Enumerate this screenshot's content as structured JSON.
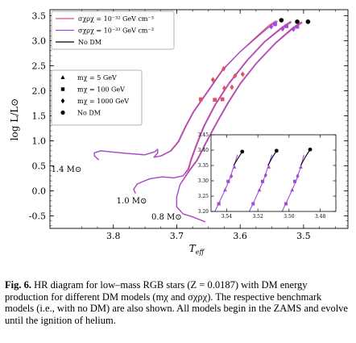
{
  "chart_data": {
    "type": "line",
    "xlabel": "T_eff",
    "ylabel": "log L/L⊙",
    "x_reversed": true,
    "xlim": [
      3.9,
      3.43
    ],
    "ylim": [
      -0.75,
      3.62
    ],
    "x_ticks": [
      "3.8",
      "3.7",
      "3.6",
      "3.5"
    ],
    "x_tick_values": [
      3.8,
      3.7,
      3.6,
      3.5
    ],
    "y_ticks": [
      "3.5",
      "3.0",
      "2.5",
      "2.0",
      "1.5",
      "1.0",
      "0.5",
      "0.0",
      "-0.5"
    ],
    "y_tick_values": [
      3.5,
      3.0,
      2.5,
      2.0,
      1.5,
      1.0,
      0.5,
      0.0,
      -0.5
    ],
    "colors": {
      "sigma_-32": "#e0535f",
      "sigma_-33": "#a24bd6",
      "no_dm": "#000000"
    },
    "legend_lines": {
      "placement": "top-left",
      "entries": [
        {
          "label": "σχρχ = 10⁻³² GeV cm⁻³",
          "color": "#e0535f"
        },
        {
          "label": "σχρχ = 10⁻³³ GeV cm⁻³",
          "color": "#a24bd6"
        },
        {
          "label": "No DM",
          "color": "#000000"
        }
      ]
    },
    "legend_markers": {
      "placement": "upper-left",
      "entries": [
        {
          "marker": "triangle",
          "label": "mχ = 5 GeV"
        },
        {
          "marker": "square",
          "label": "mχ = 100 GeV"
        },
        {
          "marker": "diamond",
          "label": "mχ = 1000 GeV"
        },
        {
          "marker": "circle",
          "label": "No DM"
        }
      ]
    },
    "mass_labels": [
      {
        "text": "1.4 M⊙",
        "x": 3.898,
        "y": 0.38
      },
      {
        "text": "1.0 M⊙",
        "x": 3.795,
        "y": -0.25
      },
      {
        "text": "0.8 M⊙",
        "x": 3.74,
        "y": -0.57
      }
    ],
    "series": [
      {
        "name": "1.4 M⊙",
        "group": "sigma_-32",
        "x": [
          3.823,
          3.83,
          3.83,
          3.82,
          3.78,
          3.75,
          3.735,
          3.73,
          3.73,
          3.736,
          3.725,
          3.71,
          3.698,
          3.686,
          3.674,
          3.652,
          3.628,
          3.6,
          3.57,
          3.555,
          3.543
        ],
        "y": [
          0.62,
          0.7,
          0.76,
          0.8,
          0.75,
          0.72,
          0.78,
          0.83,
          0.76,
          0.67,
          0.7,
          0.8,
          0.98,
          1.3,
          1.58,
          1.98,
          2.42,
          2.78,
          3.13,
          3.3,
          3.4
        ]
      },
      {
        "name": "1.4 M⊙",
        "group": "sigma_-33",
        "x": [
          3.823,
          3.83,
          3.83,
          3.82,
          3.78,
          3.75,
          3.735,
          3.73,
          3.73,
          3.736,
          3.724,
          3.709,
          3.697,
          3.685,
          3.673,
          3.651,
          3.627,
          3.6,
          3.568,
          3.553,
          3.541
        ],
        "y": [
          0.62,
          0.7,
          0.76,
          0.8,
          0.75,
          0.72,
          0.78,
          0.83,
          0.76,
          0.67,
          0.7,
          0.8,
          0.98,
          1.3,
          1.58,
          1.98,
          2.42,
          2.78,
          3.13,
          3.29,
          3.39
        ]
      },
      {
        "name": "1.0 M⊙",
        "group": "sigma_-32",
        "x": [
          3.765,
          3.768,
          3.762,
          3.743,
          3.723,
          3.705,
          3.69,
          3.682,
          3.678,
          3.67,
          3.658,
          3.64,
          3.618,
          3.59,
          3.562,
          3.535,
          3.52
        ],
        "y": [
          -0.05,
          0.03,
          0.14,
          0.24,
          0.28,
          0.26,
          0.3,
          0.44,
          0.62,
          0.9,
          1.28,
          1.72,
          2.15,
          2.6,
          2.98,
          3.26,
          3.39
        ]
      },
      {
        "name": "1.0 M⊙",
        "group": "sigma_-33",
        "x": [
          3.765,
          3.768,
          3.762,
          3.743,
          3.723,
          3.705,
          3.69,
          3.681,
          3.677,
          3.669,
          3.657,
          3.639,
          3.617,
          3.589,
          3.561,
          3.534,
          3.519
        ],
        "y": [
          -0.05,
          0.03,
          0.14,
          0.24,
          0.28,
          0.26,
          0.3,
          0.44,
          0.62,
          0.9,
          1.28,
          1.72,
          2.15,
          2.6,
          2.98,
          3.25,
          3.37
        ]
      },
      {
        "name": "0.8 M⊙",
        "group": "sigma_-32",
        "x": [
          3.655,
          3.675,
          3.69,
          3.7,
          3.7,
          3.695,
          3.682,
          3.668,
          3.655,
          3.638,
          3.62,
          3.6,
          3.575,
          3.545,
          3.518,
          3.503
        ],
        "y": [
          -0.62,
          -0.52,
          -0.46,
          -0.32,
          -0.12,
          0.12,
          0.38,
          0.62,
          0.95,
          1.35,
          1.75,
          2.15,
          2.55,
          2.95,
          3.25,
          3.38
        ]
      },
      {
        "name": "0.8 M⊙",
        "group": "sigma_-33",
        "x": [
          3.655,
          3.675,
          3.69,
          3.7,
          3.7,
          3.695,
          3.681,
          3.667,
          3.654,
          3.637,
          3.619,
          3.599,
          3.574,
          3.544,
          3.517,
          3.502
        ],
        "y": [
          -0.62,
          -0.52,
          -0.46,
          -0.32,
          -0.12,
          0.12,
          0.38,
          0.62,
          0.95,
          1.35,
          1.75,
          2.15,
          2.55,
          2.95,
          3.24,
          3.36
        ]
      }
    ],
    "markers": [
      {
        "marker": "diamond",
        "group": "sigma_-32",
        "x": [
          3.643,
          3.625,
          3.613
        ],
        "y": [
          2.22,
          2.05,
          2.07
        ]
      },
      {
        "marker": "diamond",
        "group": "sigma_-32",
        "x": [
          3.626,
          3.608,
          3.596
        ],
        "y": [
          2.44,
          2.3,
          2.33
        ]
      },
      {
        "marker": "square",
        "group": "sigma_-32",
        "x": [
          3.662,
          3.64,
          3.628
        ],
        "y": [
          1.83,
          1.82,
          1.83
        ]
      },
      {
        "marker": "diamond",
        "group": "sigma_-33",
        "x": [
          3.551,
          3.533,
          3.516
        ],
        "y": [
          3.28,
          3.24,
          3.23
        ]
      },
      {
        "marker": "square",
        "group": "sigma_-33",
        "x": [
          3.545,
          3.527,
          3.51
        ],
        "y": [
          3.33,
          3.29,
          3.28
        ]
      },
      {
        "marker": "circle",
        "group": "no_dm",
        "x": [
          3.535,
          3.51,
          3.493
        ],
        "y": [
          3.41,
          3.38,
          3.38
        ]
      }
    ],
    "inset": {
      "xlim": [
        3.55,
        3.47
      ],
      "ylim": [
        3.2,
        3.45
      ],
      "x_ticks": [
        "3.54",
        "3.52",
        "3.50",
        "3.48"
      ],
      "x_tick_values": [
        3.54,
        3.52,
        3.5,
        3.48
      ],
      "y_ticks": [
        "3.45",
        "3.40",
        "3.35",
        "3.30",
        "3.25",
        "3.20"
      ],
      "y_tick_values": [
        3.45,
        3.4,
        3.35,
        3.3,
        3.25,
        3.2
      ],
      "lines": [
        {
          "group": "sigma_-33",
          "x": [
            3.5475,
            3.5445,
            3.5415,
            3.5385,
            3.5355,
            3.533
          ],
          "y": [
            3.2,
            3.232,
            3.265,
            3.3,
            3.345,
            3.385
          ]
        },
        {
          "group": "sigma_-33",
          "x": [
            3.5255,
            3.5225,
            3.5195,
            3.5165,
            3.5135,
            3.511
          ],
          "y": [
            3.2,
            3.232,
            3.265,
            3.3,
            3.345,
            3.385
          ]
        },
        {
          "group": "sigma_-33",
          "x": [
            3.5045,
            3.5015,
            3.4985,
            3.4955,
            3.4925,
            3.4905
          ],
          "y": [
            3.2,
            3.232,
            3.265,
            3.3,
            3.345,
            3.385
          ]
        },
        {
          "group": "no_dm",
          "x": [
            3.5355,
            3.5325,
            3.53
          ],
          "y": [
            3.35,
            3.375,
            3.395
          ]
        },
        {
          "group": "no_dm",
          "x": [
            3.5135,
            3.5105,
            3.508
          ],
          "y": [
            3.35,
            3.378,
            3.398
          ]
        },
        {
          "group": "no_dm",
          "x": [
            3.4925,
            3.4895,
            3.4865
          ],
          "y": [
            3.35,
            3.378,
            3.402
          ]
        }
      ],
      "markers": [
        {
          "marker": "square",
          "x": [
            3.545,
            3.523,
            3.502
          ],
          "y": [
            3.225,
            3.225,
            3.225
          ]
        },
        {
          "marker": "triangle",
          "x": [
            3.541,
            3.519,
            3.498
          ],
          "y": [
            3.27,
            3.27,
            3.27
          ]
        },
        {
          "marker": "square",
          "x": [
            3.539,
            3.517,
            3.4963
          ],
          "y": [
            3.298,
            3.298,
            3.298
          ]
        },
        {
          "marker": "diamond",
          "x": [
            3.537,
            3.515,
            3.4945
          ],
          "y": [
            3.315,
            3.318,
            3.315
          ]
        },
        {
          "marker": "triangle",
          "x": [
            3.535,
            3.513,
            3.4925
          ],
          "y": [
            3.345,
            3.345,
            3.345
          ]
        },
        {
          "marker": "circle",
          "x": [
            3.53,
            3.508,
            3.4865
          ],
          "y": [
            3.395,
            3.398,
            3.402
          ]
        }
      ]
    }
  },
  "caption": {
    "label": "Fig. 6.",
    "text": "HR diagram for low–mass RGB stars (Z = 0.0187) with DM energy production for different DM models (mχ and σχρχ). The respective benchmark models (i.e., with no DM) are also shown. All models begin in the ZAMS and evolve until the ignition of helium."
  }
}
